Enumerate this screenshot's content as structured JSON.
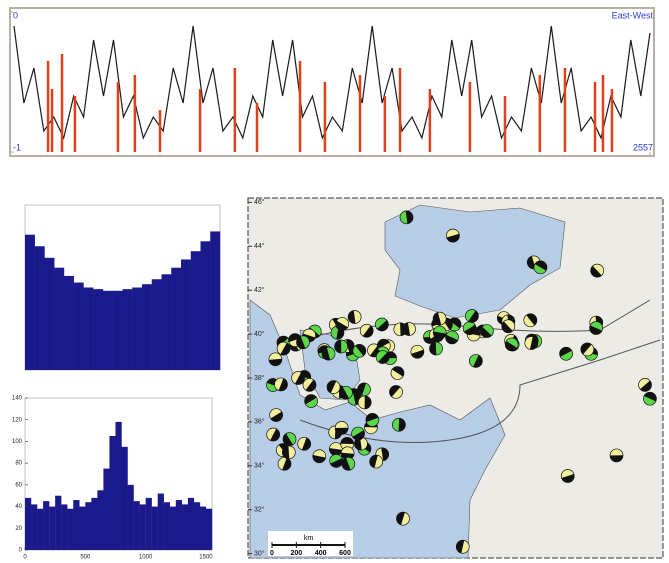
{
  "chart_data": [
    {
      "type": "line",
      "xlim": [
        0,
        2557
      ],
      "xticks": [
        2557
      ],
      "ylim": [
        -1,
        0
      ],
      "yticks": [
        -1,
        0
      ],
      "series": [
        {
          "name": "East-West",
          "type": "line",
          "color": "#1a1a1a",
          "x": [
            0,
            40,
            80,
            120,
            160,
            200,
            240,
            280,
            320,
            360,
            400,
            440,
            480,
            520,
            560,
            600,
            640,
            680,
            720,
            760,
            800,
            840,
            880,
            920,
            960,
            1000,
            1040,
            1080,
            1120,
            1160,
            1200,
            1240,
            1280,
            1320,
            1360,
            1400,
            1440,
            1480,
            1520,
            1560,
            1600,
            1640,
            1680,
            1720,
            1760,
            1800,
            1840,
            1880,
            1920,
            1960,
            2000,
            2040,
            2080,
            2120,
            2160,
            2200,
            2240,
            2280,
            2320,
            2360,
            2400,
            2440,
            2480,
            2520,
            2557
          ],
          "values": [
            -0.1,
            -0.65,
            -0.4,
            -0.85,
            -0.75,
            -0.9,
            -0.6,
            -0.75,
            -0.2,
            -0.6,
            -0.2,
            -0.75,
            -0.6,
            -0.9,
            -0.75,
            -0.85,
            -0.4,
            -0.65,
            -0.1,
            -0.65,
            -0.4,
            -0.85,
            -0.75,
            -0.9,
            -0.6,
            -0.75,
            -0.2,
            -0.6,
            -0.2,
            -0.75,
            -0.6,
            -0.9,
            -0.75,
            -0.85,
            -0.4,
            -0.65,
            -0.1,
            -0.65,
            -0.4,
            -0.85,
            -0.75,
            -0.9,
            -0.6,
            -0.75,
            -0.2,
            -0.6,
            -0.2,
            -0.75,
            -0.6,
            -0.9,
            -0.75,
            -0.85,
            -0.4,
            -0.65,
            -0.1,
            -0.65,
            -0.4,
            -0.85,
            -0.75,
            -0.9,
            -0.6,
            -0.75,
            -0.2,
            -0.6,
            -0.15
          ]
        },
        {
          "type": "spike",
          "color": "#e0401a",
          "x": [
            137,
            153,
            193,
            245,
            418,
            486,
            587,
            748,
            888,
            977,
            1150,
            1250,
            1391,
            1491,
            1552,
            1672,
            1833,
            1974,
            2114,
            2215,
            2336,
            2368,
            2404
          ],
          "values": [
            -0.35,
            -0.55,
            -0.3,
            -0.6,
            -0.5,
            -0.45,
            -0.7,
            -0.55,
            -0.4,
            -0.65,
            -0.35,
            -0.5,
            -0.45,
            -0.6,
            -0.4,
            -0.55,
            -0.5,
            -0.6,
            -0.45,
            -0.4,
            -0.5,
            -0.45,
            -0.55
          ]
        }
      ]
    },
    {
      "type": "histogram",
      "color": "#1a1a8c",
      "bins": [
        0,
        1,
        2,
        3,
        4,
        5,
        6,
        7,
        8,
        9,
        10,
        11,
        12,
        13,
        14,
        15,
        16,
        17,
        18,
        19,
        20
      ],
      "counts": [
        82,
        75,
        68,
        62,
        57,
        53,
        50,
        49,
        48,
        48,
        49,
        50,
        52,
        55,
        58,
        62,
        67,
        72,
        78,
        84
      ],
      "xlim": [
        0,
        20
      ],
      "ylim": [
        0,
        100
      ]
    },
    {
      "type": "histogram",
      "color": "#1a1a8c",
      "bins": [
        0,
        50,
        100,
        150,
        200,
        250,
        300,
        350,
        400,
        450,
        500,
        550,
        600,
        650,
        700,
        750,
        800,
        850,
        900,
        950,
        1000,
        1050,
        1100,
        1150,
        1200,
        1250,
        1300,
        1350,
        1400,
        1450,
        1500,
        1550
      ],
      "counts": [
        48,
        42,
        38,
        45,
        40,
        50,
        42,
        38,
        46,
        40,
        44,
        48,
        55,
        75,
        105,
        118,
        95,
        60,
        45,
        42,
        48,
        40,
        52,
        44,
        40,
        46,
        42,
        48,
        44,
        40,
        38
      ],
      "xlim": [
        0,
        1550
      ],
      "xticks": [
        0,
        500,
        1000,
        1500
      ],
      "ylim": [
        0,
        140
      ],
      "yticks": [
        0,
        20,
        40,
        60,
        80,
        100,
        120,
        140
      ]
    },
    {
      "type": "map",
      "ylim": [
        29.8,
        46.2
      ],
      "yticks": [
        {
          "value": 46,
          "label": "46°"
        },
        {
          "value": 44,
          "label": "44°"
        },
        {
          "value": 42,
          "label": "42°"
        },
        {
          "value": 40,
          "label": "40°"
        },
        {
          "value": 38,
          "label": "38°"
        },
        {
          "value": 36,
          "label": "36°"
        },
        {
          "value": 34,
          "label": "34°"
        },
        {
          "value": 32,
          "label": "32°"
        },
        {
          "value": 30,
          "label": "30°"
        }
      ],
      "scale_label": "km",
      "scale_lim": [
        0,
        600
      ],
      "scale_ticks": [
        0,
        200,
        400,
        600
      ]
    }
  ]
}
